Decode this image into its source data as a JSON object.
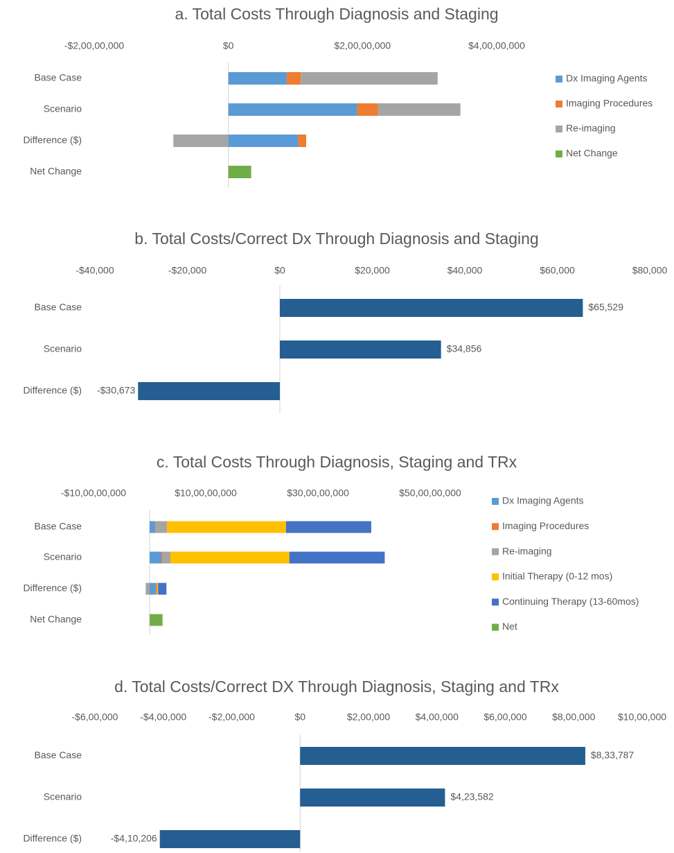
{
  "chart_data": [
    {
      "type": "bar",
      "orientation": "horizontal",
      "stacked": true,
      "legend": "right",
      "title": "a. Total Costs Through Diagnosis and Staging",
      "categories": [
        "Base Case",
        "Scenario",
        "Difference ($)",
        "Net Change"
      ],
      "series": [
        {
          "name": "Dx Imaging Agents",
          "color": "#5b9bd5",
          "values": [
            87000000,
            192000000,
            104000000,
            null
          ]
        },
        {
          "name": "Imaging Procedures",
          "color": "#ed7d31",
          "values": [
            21000000,
            31000000,
            12000000,
            null
          ]
        },
        {
          "name": "Re-imaging",
          "color": "#a5a5a5",
          "values": [
            204000000,
            123000000,
            -82000000,
            null
          ]
        },
        {
          "name": "Net Change",
          "color": "#70ad47",
          "values": [
            null,
            null,
            null,
            34000000
          ]
        }
      ],
      "xlim": [
        -200000000,
        400000000
      ],
      "xticks": [
        {
          "value": -200000000,
          "label": "-$2,00,00,000"
        },
        {
          "value": 0,
          "label": "$0"
        },
        {
          "value": 200000000,
          "label": "$2,00,00,000"
        },
        {
          "value": 400000000,
          "label": "$4,00,00,000"
        }
      ]
    },
    {
      "type": "bar",
      "orientation": "horizontal",
      "title": "b. Total Costs/Correct Dx Through Diagnosis and Staging",
      "categories": [
        "Base Case",
        "Scenario",
        "Difference ($)"
      ],
      "values": [
        65529,
        34856,
        -30673
      ],
      "value_labels": [
        "$65,529",
        "$34,856",
        "-$30,673"
      ],
      "color": "#255e91",
      "xlim": [
        -40000,
        80000
      ],
      "xticks": [
        {
          "value": -40000,
          "label": "-$40,000"
        },
        {
          "value": -20000,
          "label": "-$20,000"
        },
        {
          "value": 0,
          "label": "$0"
        },
        {
          "value": 20000,
          "label": "$20,000"
        },
        {
          "value": 40000,
          "label": "$40,000"
        },
        {
          "value": 60000,
          "label": "$60,000"
        },
        {
          "value": 80000,
          "label": "$80,000"
        }
      ]
    },
    {
      "type": "bar",
      "orientation": "horizontal",
      "stacked": true,
      "legend": "right",
      "title": "c. Total Costs Through Diagnosis, Staging and TRx",
      "categories": [
        "Base Case",
        "Scenario",
        "Difference ($)",
        "Net Change"
      ],
      "series": [
        {
          "name": "Dx Imaging Agents",
          "color": "#5b9bd5",
          "values": [
            10000000,
            21000000,
            11000000,
            null
          ]
        },
        {
          "name": "Imaging Procedures",
          "color": "#ed7d31",
          "values": [
            1000000,
            2000000,
            2000000,
            null
          ]
        },
        {
          "name": "Re-imaging",
          "color": "#a5a5a5",
          "values": [
            20000000,
            14000000,
            -7000000,
            null
          ]
        },
        {
          "name": "Initial Therapy (0-12 mos)",
          "color": "#ffc000",
          "values": [
            212000000,
            212000000,
            2000000,
            null
          ]
        },
        {
          "name": "Continuing Therapy (13-60mos)",
          "color": "#4472c4",
          "values": [
            152000000,
            170000000,
            15000000,
            null
          ]
        },
        {
          "name": "Net",
          "color": "#70ad47",
          "values": [
            null,
            null,
            null,
            23000000
          ]
        }
      ],
      "xlim": [
        -100000000,
        500000000
      ],
      "xticks": [
        {
          "value": -100000000,
          "label": "-$10,00,00,000"
        },
        {
          "value": 100000000,
          "label": "$10,00,00,000"
        },
        {
          "value": 300000000,
          "label": "$30,00,00,000"
        },
        {
          "value": 500000000,
          "label": "$50,00,00,000"
        }
      ]
    },
    {
      "type": "bar",
      "orientation": "horizontal",
      "title": "d. Total Costs/Correct DX Through Diagnosis, Staging and TRx",
      "categories": [
        "Base Case",
        "Scenario",
        "Difference ($)"
      ],
      "values": [
        833787,
        423582,
        -410206
      ],
      "value_labels": [
        "$8,33,787",
        "$4,23,582",
        "-$4,10,206"
      ],
      "color": "#255e91",
      "xlim": [
        -600000,
        1000000
      ],
      "xticks": [
        {
          "value": -600000,
          "label": "-$6,00,000"
        },
        {
          "value": -400000,
          "label": "-$4,00,000"
        },
        {
          "value": -200000,
          "label": "-$2,00,000"
        },
        {
          "value": 0,
          "label": "$0"
        },
        {
          "value": 200000,
          "label": "$2,00,000"
        },
        {
          "value": 400000,
          "label": "$4,00,000"
        },
        {
          "value": 600000,
          "label": "$6,00,000"
        },
        {
          "value": 800000,
          "label": "$8,00,000"
        },
        {
          "value": 1000000,
          "label": "$10,00,000"
        }
      ]
    }
  ]
}
